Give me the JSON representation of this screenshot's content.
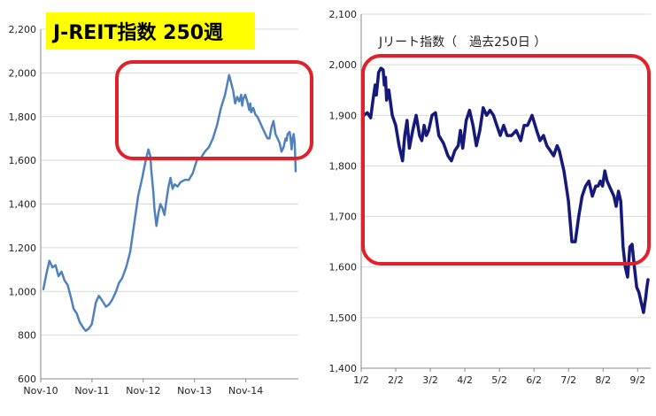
{
  "chart_data": [
    {
      "type": "line",
      "title": "J-REIT指数 250週",
      "title_background": "#ffff00",
      "line_color": "#4f81bd",
      "highlight_color": "#e0202a",
      "ylim": [
        600,
        2200
      ],
      "y_ticks": [
        "600",
        "800",
        "1,000",
        "1,200",
        "1,400",
        "1,600",
        "1,800",
        "2,000",
        "2,200"
      ],
      "x_ticks": [
        "Nov-10",
        "Nov-11",
        "Nov-12",
        "Nov-13",
        "Nov-14"
      ],
      "grid": true,
      "x": [
        0,
        3,
        6,
        9,
        12,
        15,
        18,
        21,
        24,
        28,
        30,
        33,
        36,
        40,
        42,
        45,
        48,
        52,
        55,
        58,
        62,
        65,
        68,
        72,
        75,
        78,
        82,
        86,
        90,
        94,
        98,
        101,
        104,
        106,
        107,
        109,
        110,
        112,
        114,
        116,
        118,
        120,
        122,
        124,
        126,
        128,
        130,
        133,
        136,
        140,
        144,
        148,
        152,
        156,
        160,
        164,
        168,
        172,
        176,
        180,
        184,
        188,
        190,
        192,
        194,
        196,
        197,
        198,
        200,
        202,
        204,
        205,
        206,
        208,
        210,
        212,
        214,
        216,
        218,
        220,
        222,
        224,
        226,
        228,
        230,
        232,
        234,
        236,
        238,
        240,
        241,
        242,
        244,
        245,
        246,
        247,
        248,
        249,
        250
      ],
      "values": [
        1010,
        1080,
        1140,
        1110,
        1120,
        1070,
        1090,
        1050,
        1030,
        960,
        920,
        900,
        860,
        830,
        820,
        830,
        850,
        950,
        980,
        960,
        930,
        940,
        960,
        1000,
        1040,
        1060,
        1110,
        1180,
        1310,
        1440,
        1520,
        1590,
        1650,
        1620,
        1550,
        1450,
        1380,
        1300,
        1360,
        1400,
        1380,
        1350,
        1420,
        1480,
        1520,
        1470,
        1490,
        1480,
        1500,
        1510,
        1510,
        1540,
        1600,
        1610,
        1640,
        1660,
        1700,
        1760,
        1840,
        1900,
        1990,
        1920,
        1860,
        1890,
        1870,
        1900,
        1850,
        1880,
        1900,
        1870,
        1830,
        1860,
        1820,
        1840,
        1810,
        1800,
        1780,
        1760,
        1740,
        1720,
        1700,
        1700,
        1750,
        1780,
        1720,
        1700,
        1680,
        1640,
        1660,
        1700,
        1690,
        1720,
        1730,
        1700,
        1650,
        1700,
        1720,
        1680,
        1550
      ]
    },
    {
      "type": "line",
      "title": "Jリート指数（　過去250日 ）",
      "line_color": "#14197a",
      "highlight_color": "#e0202a",
      "ylim": [
        1400,
        2100
      ],
      "y_ticks": [
        "1,400",
        "1,500",
        "1,600",
        "1,700",
        "1,800",
        "1,900",
        "2,000",
        "2,100"
      ],
      "x_ticks": [
        "1/2",
        "2/2",
        "3/2",
        "4/2",
        "5/2",
        "6/2",
        "7/2",
        "8/2",
        "9/2"
      ],
      "grid": true,
      "x": [
        0,
        3,
        6,
        8,
        10,
        11,
        13,
        15,
        17,
        18,
        19,
        20,
        22,
        25,
        28,
        31,
        34,
        36,
        38,
        40,
        43,
        46,
        49,
        51,
        53,
        55,
        57,
        60,
        63,
        66,
        70,
        74,
        77,
        80,
        83,
        85,
        87,
        90,
        93,
        96,
        99,
        102,
        105,
        108,
        111,
        114,
        117,
        120,
        123,
        126,
        130,
        134,
        138,
        141,
        144,
        148,
        152,
        155,
        158,
        161,
        164,
        167,
        170,
        172,
        174,
        176,
        178,
        180,
        183,
        186,
        189,
        192,
        195,
        198,
        201,
        204,
        206,
        208,
        210,
        212,
        214,
        216,
        218,
        220,
        222,
        224,
        226,
        228,
        230,
        232,
        234,
        236,
        238,
        240,
        242,
        244,
        246,
        248,
        249,
        250
      ],
      "values": [
        1900,
        1905,
        1895,
        1930,
        1960,
        1940,
        1985,
        1993,
        1990,
        1960,
        1975,
        1930,
        1950,
        1900,
        1880,
        1840,
        1810,
        1860,
        1890,
        1835,
        1870,
        1900,
        1860,
        1850,
        1880,
        1860,
        1870,
        1900,
        1905,
        1860,
        1845,
        1820,
        1810,
        1830,
        1840,
        1870,
        1835,
        1890,
        1910,
        1880,
        1840,
        1870,
        1915,
        1900,
        1910,
        1900,
        1880,
        1860,
        1880,
        1860,
        1860,
        1870,
        1850,
        1880,
        1880,
        1900,
        1870,
        1850,
        1860,
        1840,
        1830,
        1820,
        1840,
        1830,
        1810,
        1790,
        1760,
        1730,
        1650,
        1650,
        1700,
        1740,
        1760,
        1770,
        1740,
        1760,
        1760,
        1770,
        1760,
        1790,
        1770,
        1760,
        1750,
        1740,
        1720,
        1750,
        1730,
        1640,
        1600,
        1580,
        1640,
        1645,
        1600,
        1560,
        1550,
        1530,
        1510,
        1540,
        1560,
        1575
      ]
    }
  ]
}
